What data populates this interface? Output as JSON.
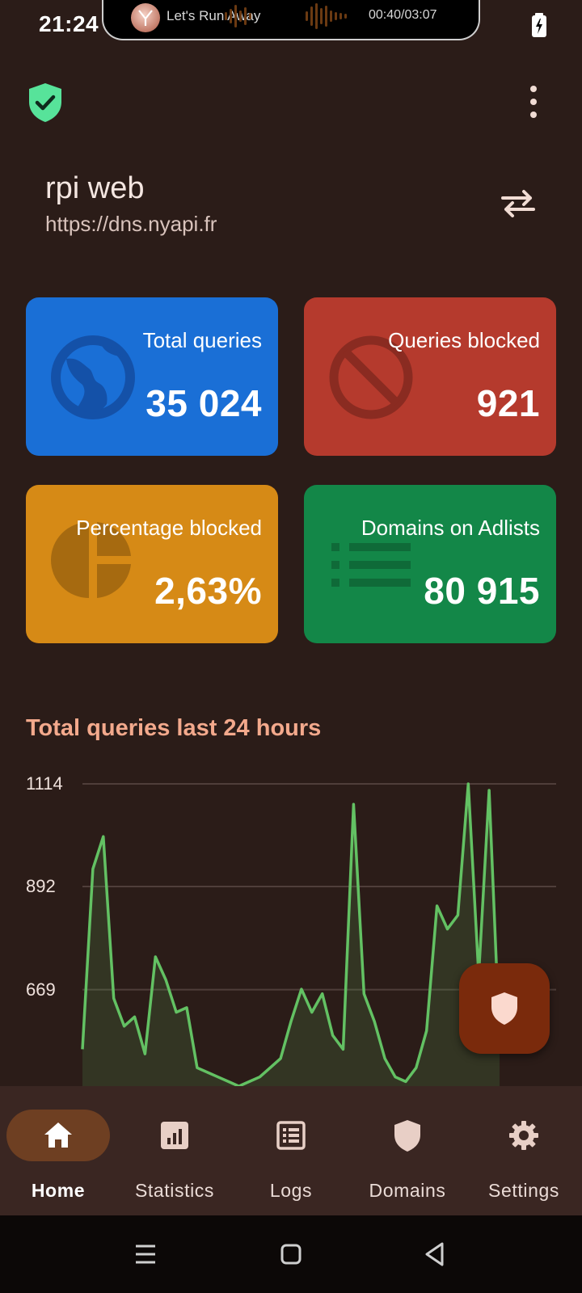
{
  "status_bar": {
    "time": "21:24",
    "media_title": "Let's Run Away",
    "media_time": "00:40/03:07"
  },
  "server": {
    "name": "rpi web",
    "url": "https://dns.nyapi.fr"
  },
  "cards": {
    "total_queries": {
      "label": "Total queries",
      "value": "35 024",
      "icon": "globe-icon",
      "color": "#1a6fd6"
    },
    "queries_blocked": {
      "label": "Queries blocked",
      "value": "921",
      "icon": "block-icon",
      "color": "#b53a2d"
    },
    "percentage_blocked": {
      "label": "Percentage blocked",
      "value": "2,63%",
      "icon": "pie-chart-icon",
      "color": "#d68a16"
    },
    "domains_on_adlists": {
      "label": "Domains on Adlists",
      "value": "80 915",
      "icon": "list-icon",
      "color": "#138748"
    }
  },
  "chart": {
    "title": "Total queries last 24 hours"
  },
  "chart_data": {
    "type": "line",
    "title": "Total queries last 24 hours",
    "xlabel": "",
    "ylabel": "",
    "yticks": [
      "1114",
      "892",
      "669"
    ],
    "grid": true,
    "series": [
      {
        "color": "#63c163",
        "x": [
          0,
          1,
          2,
          3,
          4,
          5,
          6,
          7,
          8,
          9,
          10,
          11,
          12,
          13,
          14,
          15,
          16,
          17,
          18,
          19,
          20,
          21,
          22,
          23,
          24,
          25,
          26,
          27,
          28,
          29,
          30,
          31,
          32,
          33,
          34,
          35,
          36,
          37,
          38,
          39,
          40
        ],
        "values": [
          540,
          930,
          1000,
          650,
          590,
          610,
          530,
          740,
          690,
          620,
          630,
          500,
          490,
          480,
          470,
          460,
          470,
          480,
          500,
          520,
          600,
          670,
          620,
          660,
          570,
          540,
          1070,
          660,
          600,
          520,
          480,
          470,
          500,
          580,
          850,
          800,
          830,
          1114,
          700,
          1100,
          560
        ]
      }
    ]
  },
  "fab": {
    "icon": "shield-icon"
  },
  "bottom_nav": {
    "items": [
      {
        "label": "Home",
        "icon": "home-icon",
        "active": true
      },
      {
        "label": "Statistics",
        "icon": "statistics-icon",
        "active": false
      },
      {
        "label": "Logs",
        "icon": "logs-icon",
        "active": false
      },
      {
        "label": "Domains",
        "icon": "shield-icon",
        "active": false
      },
      {
        "label": "Settings",
        "icon": "gear-icon",
        "active": false
      }
    ]
  },
  "colors": {
    "background": "#2b1c18",
    "accent": "#f3a98c",
    "status_ok": "#57e39a",
    "chart_line": "#63c163",
    "fab": "#7a2a0c",
    "nav_active": "#6e3f22"
  }
}
